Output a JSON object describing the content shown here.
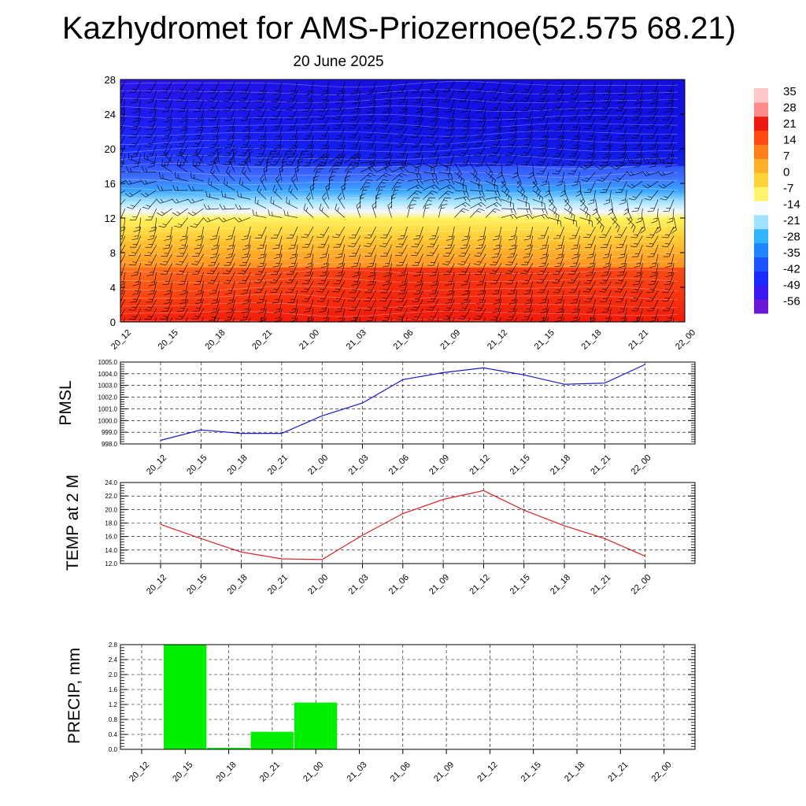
{
  "header": {
    "title": "Kazhydromet for AMS-Priozernoe(52.575 68.21)",
    "subtitle": "20 June 2025"
  },
  "time_labels": [
    "20_12",
    "20_15",
    "20_18",
    "20_21",
    "21_00",
    "21_03",
    "21_06",
    "21_09",
    "21_12",
    "21_15",
    "21_18",
    "21_21",
    "22_00"
  ],
  "colors": {
    "pmsl_line": "#1a1acc",
    "temp_line": "#dd2222",
    "precip_bar": "#00ee00",
    "barb": "#000000"
  },
  "chart_data": [
    {
      "type": "heatmap",
      "name": "Temperature cross-section with wind barbs",
      "x": [
        "20_12",
        "20_15",
        "20_18",
        "20_21",
        "21_00",
        "21_03",
        "21_06",
        "21_09",
        "21_12",
        "21_15",
        "21_18",
        "21_21",
        "22_00"
      ],
      "yticks": [
        0,
        4,
        8,
        12,
        16,
        20,
        24,
        28
      ],
      "ylim": [
        0,
        28
      ],
      "colorbar": {
        "labels": [
          "35",
          "28",
          "21",
          "14",
          "7",
          "0",
          "-7",
          "-14",
          "-21",
          "-28",
          "-35",
          "-42",
          "-49",
          "-56"
        ],
        "colors": [
          "#6a17d6",
          "#3a1af0",
          "#1a2bff",
          "#1a55ff",
          "#1e86ff",
          "#2fb4ff",
          "#9fe3ff",
          "#f6f9ff",
          "#fff36a",
          "#ffd23a",
          "#ffae2a",
          "#ff7f1a",
          "#ff4a12",
          "#ee1a10",
          "#ff8c8c",
          "#ffc8c8"
        ]
      }
    },
    {
      "type": "line",
      "name": "PMSL",
      "ylabel": "PMSL",
      "x": [
        "20_12",
        "20_15",
        "20_18",
        "20_21",
        "21_00",
        "21_03",
        "21_06",
        "21_09",
        "21_12",
        "21_15",
        "21_18",
        "21_21",
        "22_00"
      ],
      "values": [
        998.3,
        999.2,
        998.9,
        998.9,
        1000.4,
        1001.5,
        1003.5,
        1004.1,
        1004.5,
        1003.9,
        1003.1,
        1003.2,
        1004.8
      ],
      "ylim": [
        998.0,
        1005.0
      ],
      "yticks": [
        "998.0",
        "999.0",
        "1000.0",
        "1001.0",
        "1002.0",
        "1003.0",
        "1004.0",
        "1005.0"
      ]
    },
    {
      "type": "line",
      "name": "TEMP at 2 M",
      "ylabel": "TEMP at 2 M",
      "x": [
        "20_12",
        "20_15",
        "20_18",
        "20_21",
        "21_00",
        "21_03",
        "21_06",
        "21_09",
        "21_12",
        "21_15",
        "21_18",
        "21_21",
        "22_00"
      ],
      "values": [
        17.8,
        15.7,
        13.7,
        12.7,
        12.6,
        16.2,
        19.4,
        21.5,
        22.8,
        19.9,
        17.6,
        15.7,
        13.1
      ],
      "ylim": [
        12.0,
        24.0
      ],
      "yticks": [
        "12.0",
        "14.0",
        "16.0",
        "18.0",
        "20.0",
        "22.0",
        "24.0"
      ]
    },
    {
      "type": "bar",
      "name": "PRECIP, mm",
      "ylabel": "PRECIP, mm",
      "categories": [
        "20_12",
        "20_15",
        "20_18",
        "20_21",
        "21_00",
        "21_03",
        "21_06",
        "21_09",
        "21_12",
        "21_15",
        "21_18",
        "21_21",
        "22_00"
      ],
      "values": [
        0,
        2.8,
        0.04,
        0.47,
        1.25,
        0,
        0,
        0,
        0,
        0,
        0,
        0,
        0
      ],
      "ylim": [
        0,
        2.8
      ],
      "yticks": [
        "0.0",
        "0.4",
        "0.8",
        "1.2",
        "1.6",
        "2.0",
        "2.4",
        "2.8"
      ]
    }
  ]
}
